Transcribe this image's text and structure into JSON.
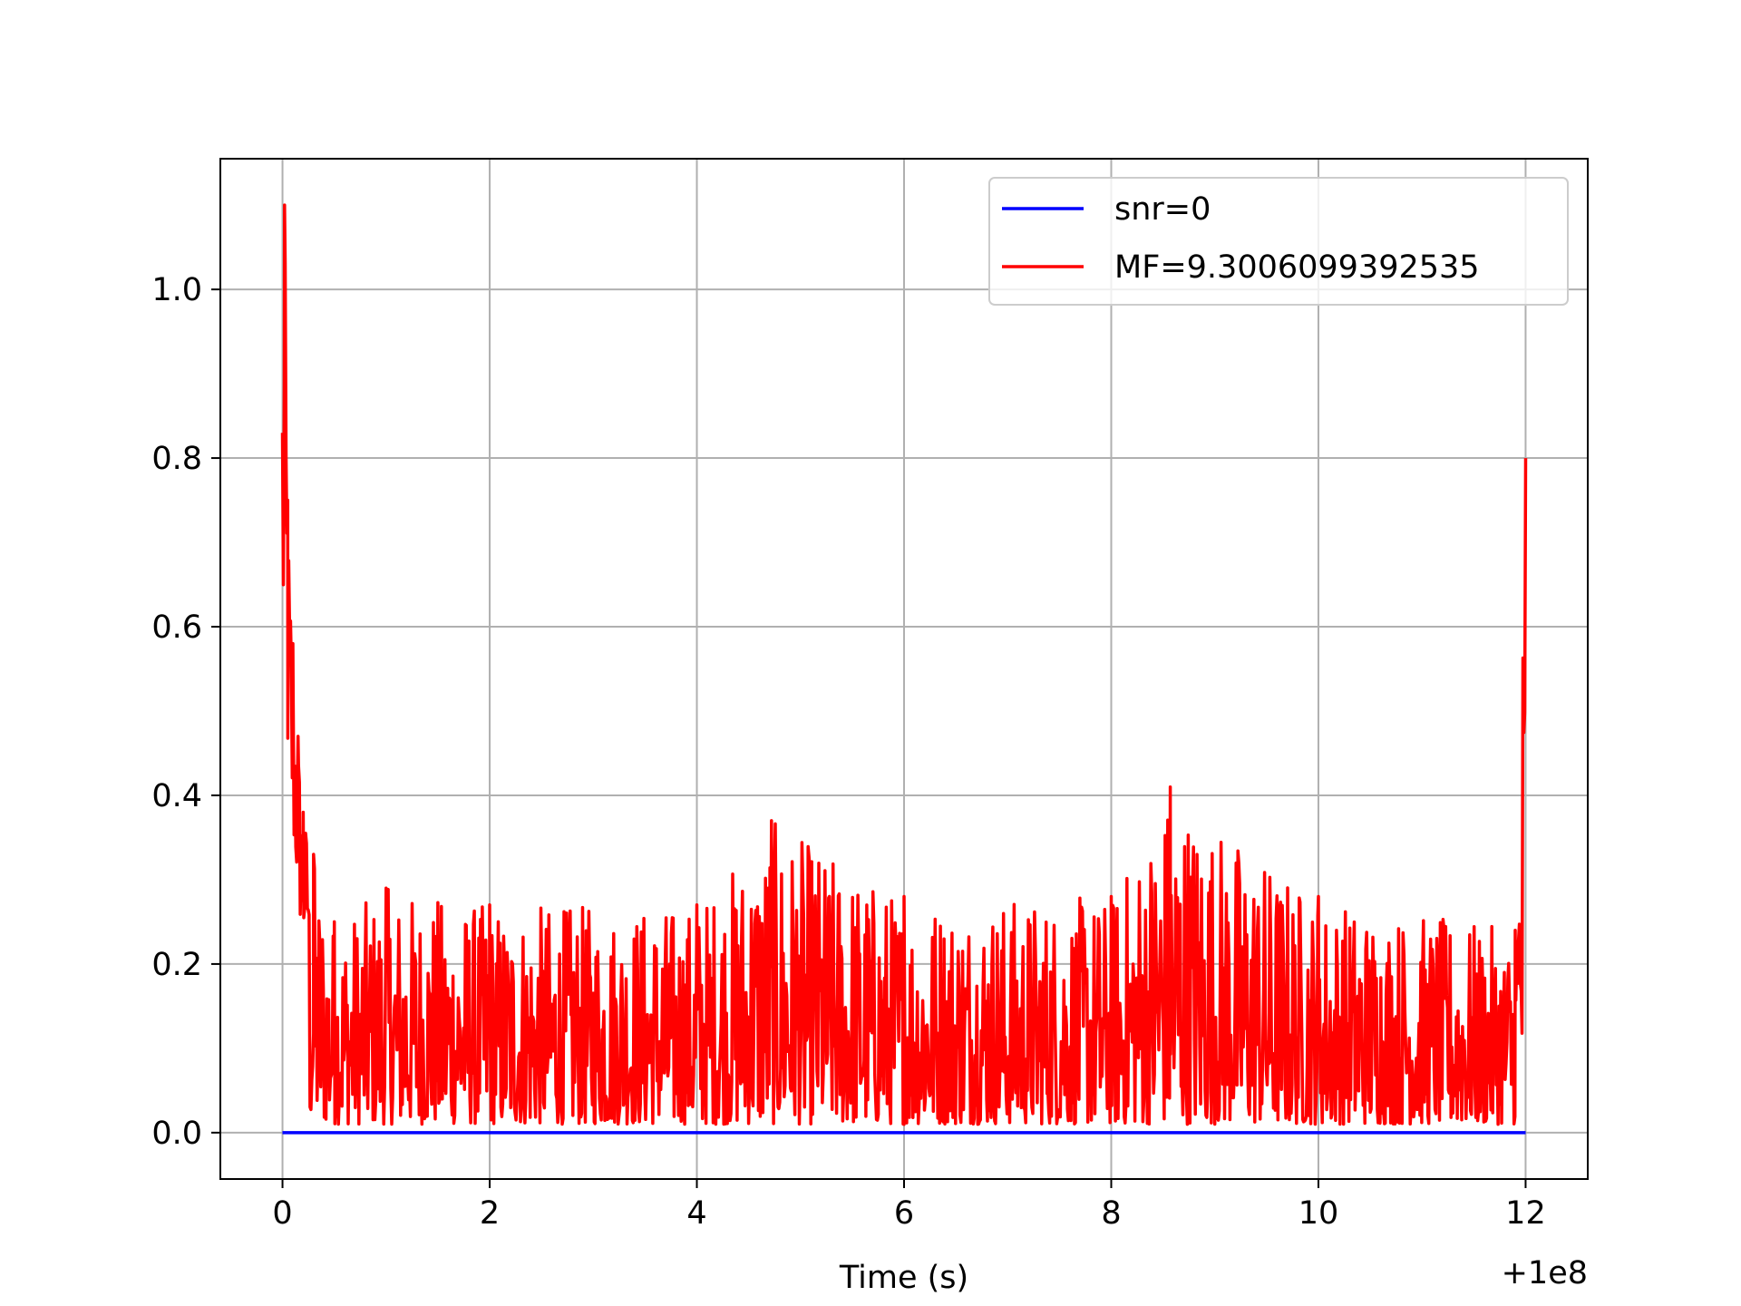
{
  "chart_data": {
    "type": "line",
    "title": "",
    "xlabel": "Time (s)",
    "ylabel": "",
    "x_offset_text": "+1e8",
    "xlim": [
      -0.6,
      12.6
    ],
    "ylim": [
      -0.055,
      1.155
    ],
    "xticks": [
      0,
      2,
      4,
      6,
      8,
      10,
      12
    ],
    "xtick_labels": [
      "0",
      "2",
      "4",
      "6",
      "8",
      "10",
      "12"
    ],
    "yticks": [
      0.0,
      0.2,
      0.4,
      0.6,
      0.8,
      1.0
    ],
    "ytick_labels": [
      "0.0",
      "0.2",
      "0.4",
      "0.6",
      "0.8",
      "1.0"
    ],
    "grid": true,
    "legend_position": "upper right",
    "series": [
      {
        "name": "snr=0",
        "color": "#0000ff",
        "x": [
          0,
          12
        ],
        "y": [
          0.0,
          0.0
        ]
      },
      {
        "name": "MF=9.3006099392535",
        "color": "#ff0000",
        "style": "noisy",
        "x": [
          0,
          0.02,
          0.05,
          0.1,
          0.15,
          0.2,
          0.3,
          0.5,
          1.0,
          2.0,
          4.0,
          4.72,
          6.0,
          8.0,
          8.57,
          10.0,
          11.9,
          12.0
        ],
        "y": [
          0.83,
          1.1,
          0.75,
          0.58,
          0.47,
          0.38,
          0.33,
          0.25,
          0.29,
          0.27,
          0.27,
          0.37,
          0.28,
          0.28,
          0.41,
          0.28,
          0.24,
          0.8
        ],
        "noise_floor": 0.01,
        "typical_level": 0.1
      }
    ]
  }
}
